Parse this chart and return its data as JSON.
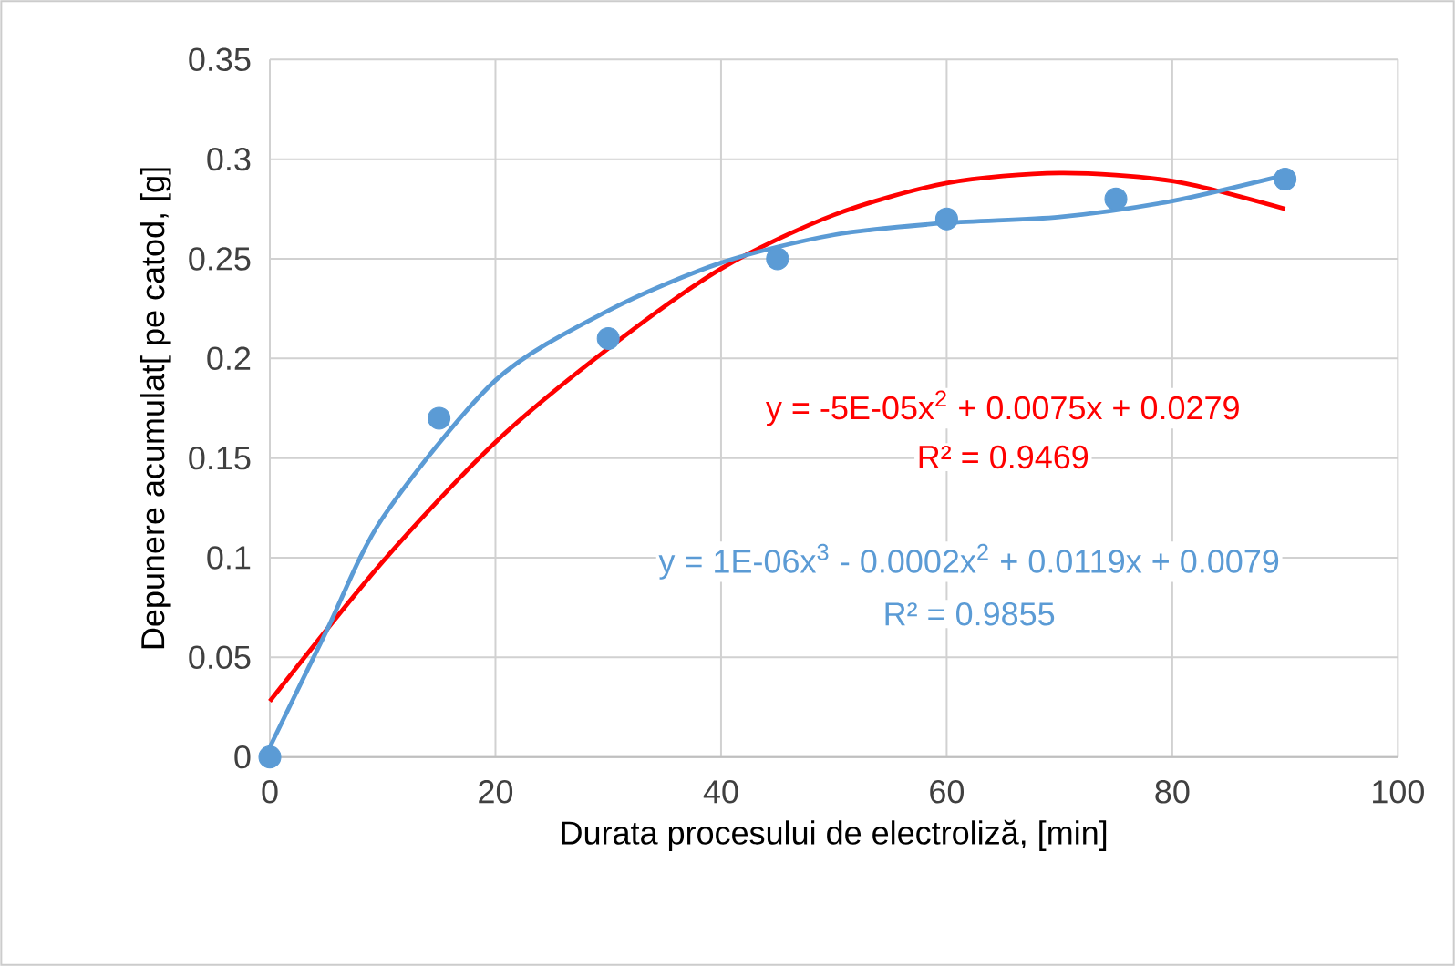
{
  "chart_data": {
    "type": "scatter",
    "xlabel": "Durata procesului de electroliză, [min]",
    "ylabel": "Depunere  acumulat[ pe catod, [g]",
    "xlim": [
      0,
      100
    ],
    "xticks": [
      0,
      20,
      40,
      60,
      80,
      100
    ],
    "ylim": [
      0,
      0.35
    ],
    "yticks": [
      0,
      0.05,
      0.1,
      0.15,
      0.2,
      0.25,
      0.3,
      0.35
    ],
    "grid": true,
    "marker": "circle",
    "series": [
      {
        "type": "line",
        "marker": "none",
        "color": "#ff0000",
        "x": [
          0,
          10,
          20,
          30,
          40,
          50,
          60,
          70,
          80,
          90
        ],
        "values": [
          0.028,
          0.098,
          0.158,
          0.205,
          0.245,
          0.272,
          0.288,
          0.293,
          0.289,
          0.275
        ]
      },
      {
        "type": "line",
        "marker": "none",
        "color": "#5b9bd5",
        "x": [
          0,
          5,
          10,
          20,
          30,
          40,
          50,
          60,
          70,
          80,
          90
        ],
        "values": [
          0.005,
          0.063,
          0.12,
          0.189,
          0.224,
          0.248,
          0.262,
          0.268,
          0.271,
          0.279,
          0.292
        ]
      },
      {
        "color": "#5b9bd5",
        "x": [
          0,
          15,
          30,
          45,
          60,
          75,
          90
        ],
        "values": [
          0,
          0.17,
          0.21,
          0.25,
          0.27,
          0.28,
          0.29
        ]
      }
    ],
    "annotations": [
      "y = -5E-05x$^{2}$ + 0.0075x + 0.0279",
      "R² = 0.9469",
      "y = 1E-06x$^{3}$ - 0.0002x$^{2}$ + 0.0119x + 0.0079",
      "R² = 0.9855"
    ]
  }
}
